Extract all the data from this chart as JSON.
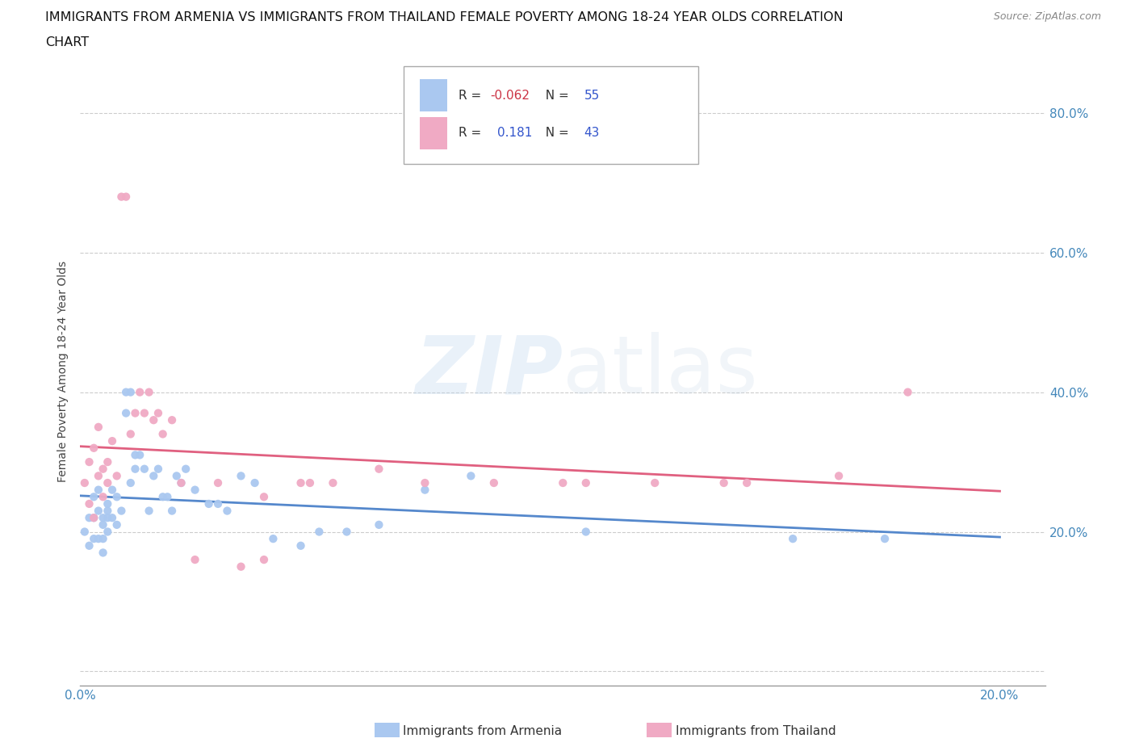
{
  "title_line1": "IMMIGRANTS FROM ARMENIA VS IMMIGRANTS FROM THAILAND FEMALE POVERTY AMONG 18-24 YEAR OLDS CORRELATION",
  "title_line2": "CHART",
  "source": "Source: ZipAtlas.com",
  "ylabel": "Female Poverty Among 18-24 Year Olds",
  "xlim": [
    0.0,
    0.21
  ],
  "ylim": [
    -0.02,
    0.88
  ],
  "yticks": [
    0.0,
    0.2,
    0.4,
    0.6,
    0.8
  ],
  "ytick_labels": [
    "",
    "20.0%",
    "40.0%",
    "60.0%",
    "80.0%"
  ],
  "xticks": [
    0.0,
    0.02,
    0.04,
    0.06,
    0.08,
    0.1,
    0.12,
    0.14,
    0.16,
    0.18,
    0.2
  ],
  "xtick_labels": [
    "0.0%",
    "",
    "",
    "",
    "",
    "",
    "",
    "",
    "",
    "",
    "20.0%"
  ],
  "armenia_color": "#aac8f0",
  "thailand_color": "#f0aac4",
  "armenia_line_color": "#5588cc",
  "thailand_line_color": "#e06080",
  "legend_r_armenia": "-0.062",
  "legend_n_armenia": "55",
  "legend_r_thailand": "0.181",
  "legend_n_thailand": "43",
  "watermark_zip": "ZIP",
  "watermark_atlas": "atlas",
  "armenia_x": [
    0.001,
    0.002,
    0.002,
    0.003,
    0.003,
    0.003,
    0.004,
    0.004,
    0.004,
    0.005,
    0.005,
    0.005,
    0.005,
    0.006,
    0.006,
    0.006,
    0.006,
    0.007,
    0.007,
    0.008,
    0.008,
    0.009,
    0.01,
    0.01,
    0.011,
    0.011,
    0.012,
    0.012,
    0.013,
    0.014,
    0.015,
    0.016,
    0.017,
    0.018,
    0.019,
    0.02,
    0.021,
    0.022,
    0.023,
    0.025,
    0.028,
    0.03,
    0.032,
    0.035,
    0.038,
    0.042,
    0.048,
    0.052,
    0.058,
    0.065,
    0.075,
    0.085,
    0.11,
    0.155,
    0.175
  ],
  "armenia_y": [
    0.2,
    0.22,
    0.18,
    0.25,
    0.22,
    0.19,
    0.26,
    0.23,
    0.19,
    0.22,
    0.21,
    0.19,
    0.17,
    0.24,
    0.22,
    0.2,
    0.23,
    0.26,
    0.22,
    0.21,
    0.25,
    0.23,
    0.4,
    0.37,
    0.4,
    0.27,
    0.29,
    0.31,
    0.31,
    0.29,
    0.23,
    0.28,
    0.29,
    0.25,
    0.25,
    0.23,
    0.28,
    0.27,
    0.29,
    0.26,
    0.24,
    0.24,
    0.23,
    0.28,
    0.27,
    0.19,
    0.18,
    0.2,
    0.2,
    0.21,
    0.26,
    0.28,
    0.2,
    0.19,
    0.19
  ],
  "thailand_x": [
    0.001,
    0.002,
    0.002,
    0.003,
    0.003,
    0.004,
    0.004,
    0.005,
    0.005,
    0.006,
    0.006,
    0.007,
    0.008,
    0.009,
    0.01,
    0.011,
    0.012,
    0.013,
    0.014,
    0.015,
    0.016,
    0.017,
    0.018,
    0.02,
    0.022,
    0.025,
    0.03,
    0.035,
    0.04,
    0.048,
    0.055,
    0.065,
    0.075,
    0.09,
    0.105,
    0.125,
    0.145,
    0.165,
    0.18,
    0.04,
    0.05,
    0.11,
    0.14
  ],
  "thailand_y": [
    0.27,
    0.24,
    0.3,
    0.32,
    0.22,
    0.28,
    0.35,
    0.29,
    0.25,
    0.27,
    0.3,
    0.33,
    0.28,
    0.68,
    0.68,
    0.34,
    0.37,
    0.4,
    0.37,
    0.4,
    0.36,
    0.37,
    0.34,
    0.36,
    0.27,
    0.16,
    0.27,
    0.15,
    0.16,
    0.27,
    0.27,
    0.29,
    0.27,
    0.27,
    0.27,
    0.27,
    0.27,
    0.28,
    0.4,
    0.25,
    0.27,
    0.27,
    0.27
  ]
}
